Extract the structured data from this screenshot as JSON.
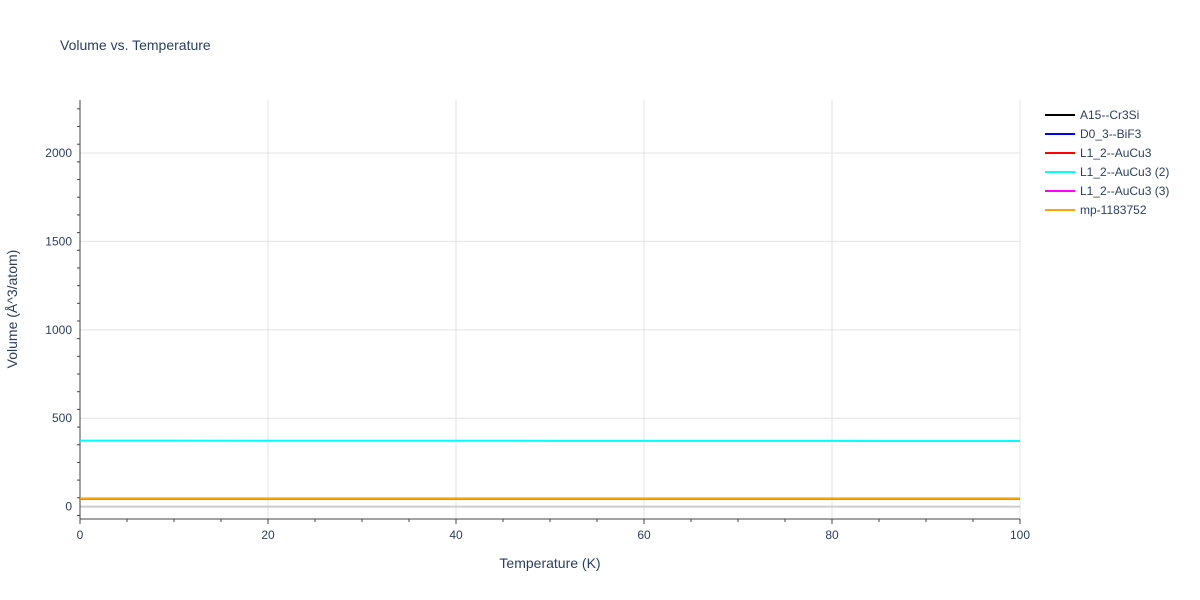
{
  "chart_data": {
    "type": "line",
    "title": "Volume vs. Temperature",
    "xlabel": "Temperature (K)",
    "ylabel": "Volume (Å^3/atom)",
    "xlim": [
      0,
      100
    ],
    "ylim": [
      -70,
      2300
    ],
    "xticks": [
      0,
      20,
      40,
      60,
      80,
      100
    ],
    "yticks": [
      0,
      500,
      1000,
      1500,
      2000
    ],
    "x": [
      0,
      10,
      20,
      30,
      40,
      50,
      60,
      70,
      80,
      90,
      100
    ],
    "grid": true,
    "legend_position": "right",
    "series": [
      {
        "name": "A15--Cr3Si",
        "color": "#000000",
        "values": [
          45,
          45,
          45,
          45,
          45,
          45,
          45,
          45,
          45,
          45,
          45
        ]
      },
      {
        "name": "D0_3--BiF3",
        "color": "#0000ff",
        "values": [
          45,
          45,
          45,
          45,
          45,
          45,
          45,
          45,
          45,
          45,
          45
        ]
      },
      {
        "name": "L1_2--AuCu3",
        "color": "#ff0000",
        "values": [
          45,
          45,
          45,
          45,
          45,
          45,
          45,
          45,
          45,
          45,
          45
        ]
      },
      {
        "name": "L1_2--AuCu3 (2)",
        "color": "#00ffff",
        "values": [
          373,
          373,
          372.8,
          372.6,
          372.4,
          372.2,
          372,
          371.8,
          371.6,
          371.4,
          371.2
        ]
      },
      {
        "name": "L1_2--AuCu3 (3)",
        "color": "#ff00ff",
        "values": [
          45,
          45,
          45,
          45,
          45,
          45,
          45,
          45,
          45,
          45,
          45
        ]
      },
      {
        "name": "mp-1183752",
        "color": "#ffa500",
        "values": [
          45,
          45,
          45,
          45,
          45,
          45,
          45,
          45,
          45,
          45,
          45
        ]
      }
    ]
  }
}
